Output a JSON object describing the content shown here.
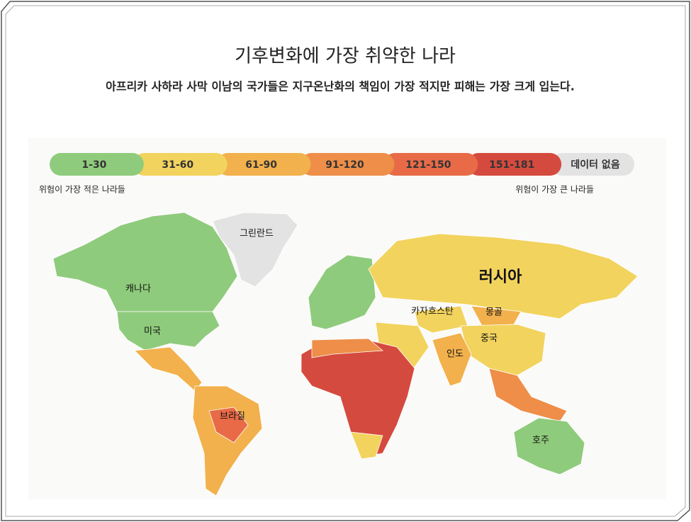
{
  "header": {
    "title": "기후변화에 가장 취약한 나라",
    "subtitle": "아프리카 사하라 사막 이남의 국가들은 지구온난화의 책임이 가장 적지만 피해는 가장 크게 입는다."
  },
  "legend": {
    "items": [
      {
        "label": "1-30",
        "color": "#8fcb7c"
      },
      {
        "label": "31-60",
        "color": "#f2d35e"
      },
      {
        "label": "61-90",
        "color": "#f2b14c"
      },
      {
        "label": "91-120",
        "color": "#ee8e48"
      },
      {
        "label": "121-150",
        "color": "#e86a47"
      },
      {
        "label": "151-181",
        "color": "#d54a3e"
      },
      {
        "label": "데이터 없음",
        "color": "#e3e3e3"
      }
    ],
    "low_caption": "위험이 가장 적은 나라들",
    "high_caption": "위험이 가장 큰 나라들"
  },
  "map": {
    "labels": [
      {
        "text": "그린란드"
      },
      {
        "text": "캐나다"
      },
      {
        "text": "미국"
      },
      {
        "text": "브라질"
      },
      {
        "text": "러시아"
      },
      {
        "text": "카자흐스탄"
      },
      {
        "text": "몽골"
      },
      {
        "text": "중국"
      },
      {
        "text": "인도"
      },
      {
        "text": "호주"
      }
    ]
  }
}
